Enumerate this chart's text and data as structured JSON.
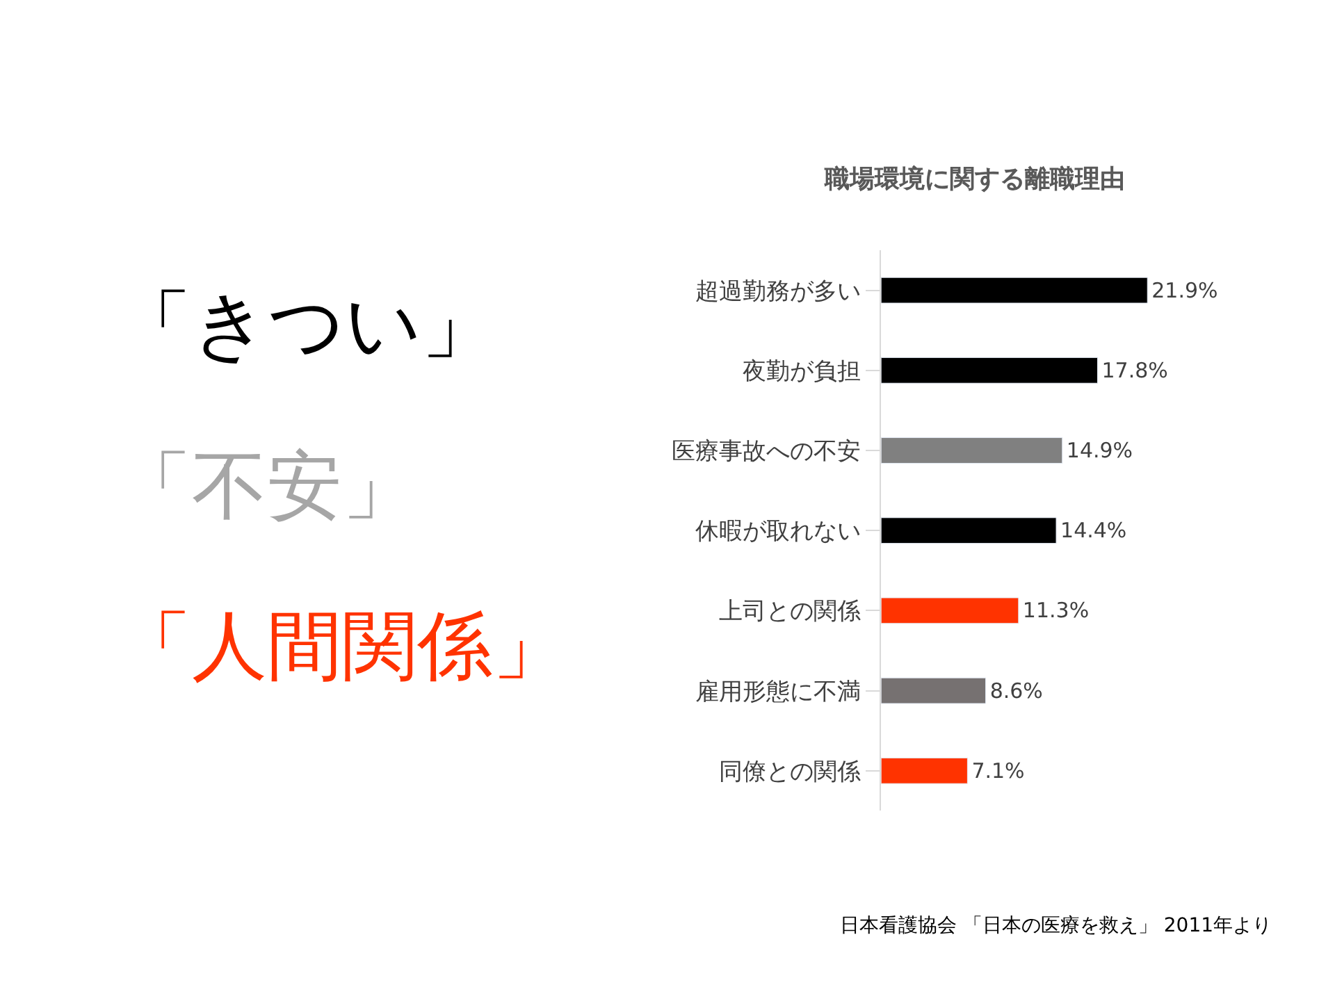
{
  "chart_data": {
    "type": "bar",
    "orientation": "horizontal",
    "title": "職場環境に関する離職理由",
    "categories": [
      "超過勤務が多い",
      "夜勤が負担",
      "医療事故への不安",
      "休暇が取れない",
      "上司との関係",
      "雇用形態に不満",
      "同僚との関係"
    ],
    "values": [
      21.9,
      17.8,
      14.9,
      14.4,
      11.3,
      8.6,
      7.1
    ],
    "value_labels": [
      "21.9%",
      "17.8%",
      "14.9%",
      "14.4%",
      "11.3%",
      "8.6%",
      "7.1%"
    ],
    "colors": [
      "#000000",
      "#000000",
      "#808080",
      "#000000",
      "#ff3300",
      "#767171",
      "#ff3300"
    ],
    "annotations": [
      "「きつい」",
      "「不安」",
      "「人間関係」",
      "日本看護協会 「日本の医療を救え」 2011年より"
    ]
  }
}
